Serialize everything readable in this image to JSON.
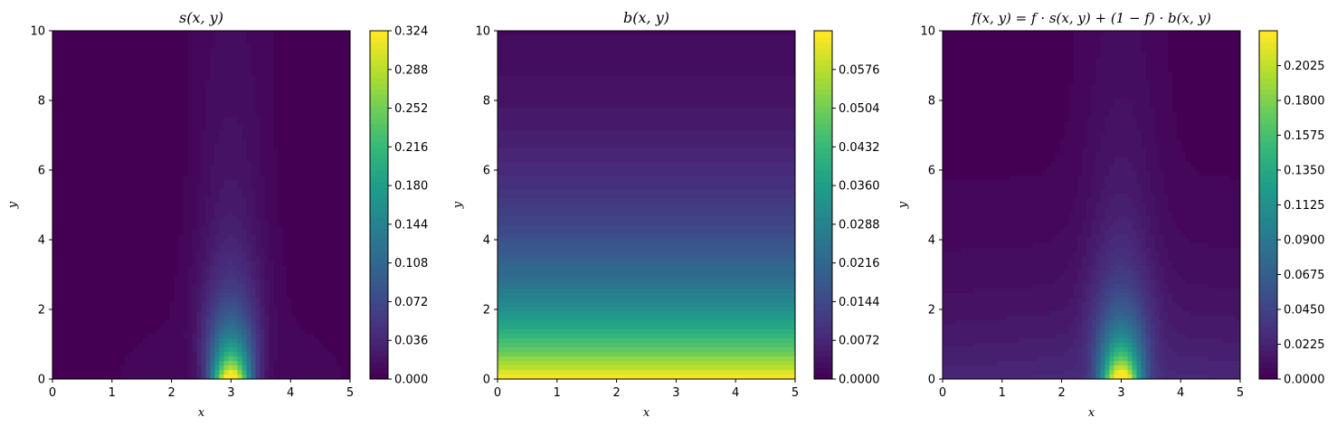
{
  "chart_data": [
    {
      "type": "heatmap",
      "title": "s(x, y)",
      "xlabel": "x",
      "ylabel": "y",
      "xlim": [
        0,
        5
      ],
      "ylim": [
        0,
        10
      ],
      "x_ticks": [
        "0",
        "1",
        "2",
        "3",
        "4",
        "5"
      ],
      "y_ticks": [
        "0",
        "2",
        "4",
        "6",
        "8",
        "10"
      ],
      "colormap": "viridis",
      "colorbar_range": [
        0,
        0.324
      ],
      "colorbar_ticks": [
        "0.000",
        "0.036",
        "0.072",
        "0.108",
        "0.144",
        "0.180",
        "0.216",
        "0.252",
        "0.288",
        "0.324"
      ],
      "peak": {
        "x": 3,
        "y": 0,
        "value": 0.324
      }
    },
    {
      "type": "heatmap",
      "title": "b(x, y)",
      "xlabel": "x",
      "ylabel": "y",
      "xlim": [
        0,
        5
      ],
      "ylim": [
        0,
        10
      ],
      "x_ticks": [
        "0",
        "1",
        "2",
        "3",
        "4",
        "5"
      ],
      "y_ticks": [
        "0",
        "2",
        "4",
        "6",
        "8",
        "10"
      ],
      "colormap": "viridis",
      "colorbar_range": [
        0,
        0.0648
      ],
      "colorbar_ticks": [
        "0.0000",
        "0.0072",
        "0.0144",
        "0.0216",
        "0.0288",
        "0.0360",
        "0.0432",
        "0.0504",
        "0.0576"
      ],
      "peak": {
        "y": 0,
        "value": 0.0648
      }
    },
    {
      "type": "heatmap",
      "title": "f(x, y) = f · s(x, y) + (1 − f) · b(x, y)",
      "xlabel": "x",
      "ylabel": "y",
      "xlim": [
        0,
        5
      ],
      "ylim": [
        0,
        10
      ],
      "x_ticks": [
        "0",
        "1",
        "2",
        "3",
        "4",
        "5"
      ],
      "y_ticks": [
        "0",
        "2",
        "4",
        "6",
        "8",
        "10"
      ],
      "colormap": "viridis",
      "colorbar_range": [
        0,
        0.225
      ],
      "colorbar_ticks": [
        "0.0000",
        "0.0225",
        "0.0450",
        "0.0675",
        "0.0900",
        "0.1125",
        "0.1350",
        "0.1575",
        "0.1800",
        "0.2025"
      ],
      "peak": {
        "x": 3,
        "y": 0,
        "value": 0.225
      }
    }
  ]
}
